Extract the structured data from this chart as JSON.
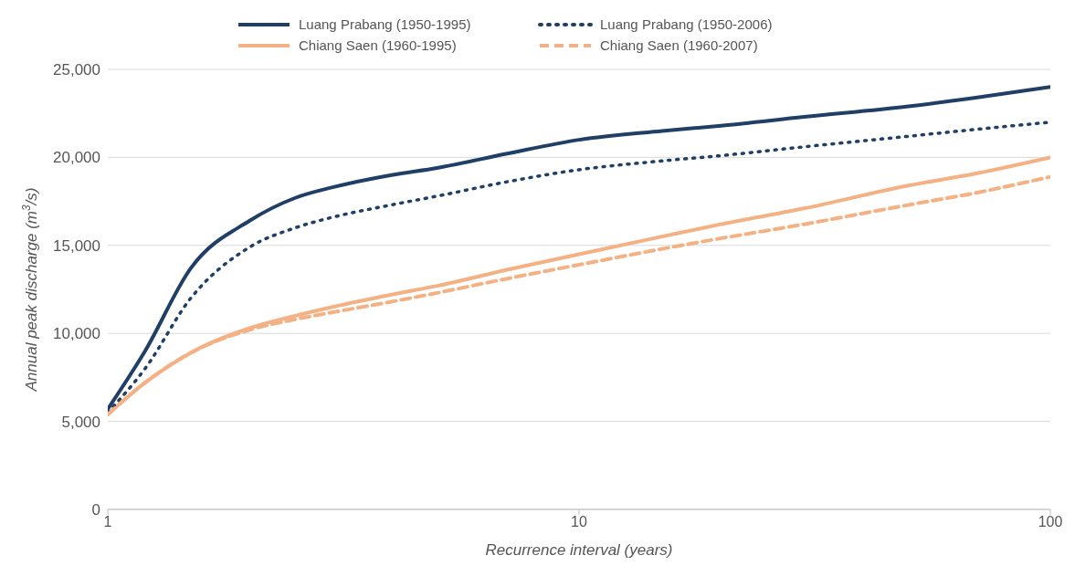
{
  "chart_data": {
    "type": "line",
    "xlabel": "Recurrence interval (years)",
    "ylabel": "Annual peak discharge (m$^{3}$/s)",
    "x": [
      1,
      1.2,
      1.5,
      2,
      2.5,
      3,
      4,
      5,
      7,
      10,
      15,
      20,
      30,
      50,
      70,
      100
    ],
    "series": [
      {
        "name": "Luang Prabang (1950-1995)",
        "color": "#203f66",
        "line_style": "solid",
        "values": [
          5700,
          9000,
          13700,
          16400,
          17700,
          18300,
          19000,
          19400,
          20200,
          21000,
          21500,
          21800,
          22300,
          22900,
          23400,
          24000
        ]
      },
      {
        "name": "Chiang Saen (1960-1995)",
        "color": "#f4b183",
        "line_style": "solid",
        "values": [
          5400,
          7200,
          8900,
          10300,
          11000,
          11500,
          12200,
          12700,
          13600,
          14500,
          15500,
          16200,
          17100,
          18400,
          19100,
          20000
        ]
      },
      {
        "name": "Luang Prabang (1950-2006)",
        "color": "#203f66",
        "line_style": "dotted",
        "values": [
          5500,
          8000,
          12000,
          14900,
          16000,
          16600,
          17300,
          17800,
          18600,
          19300,
          19800,
          20100,
          20600,
          21200,
          21600,
          22000
        ]
      },
      {
        "name": "Chiang Saen (1960-2007)",
        "color": "#f4b183",
        "line_style": "dashed",
        "values": [
          5400,
          7200,
          8900,
          10200,
          10800,
          11200,
          11800,
          12300,
          13100,
          13900,
          14800,
          15400,
          16200,
          17300,
          18000,
          18900
        ]
      }
    ],
    "log": "x",
    "xlim": [
      1,
      100
    ],
    "xticks": [
      1,
      10,
      100
    ],
    "ylim": [
      0,
      25000
    ],
    "yticks": [
      0,
      {
        "value": 5000,
        "label": "5,000"
      },
      {
        "value": 10000,
        "label": "10,000"
      },
      {
        "value": 15000,
        "label": "15,000"
      },
      {
        "value": 20000,
        "label": "20,000"
      },
      {
        "value": 25000,
        "label": "25,000"
      }
    ],
    "grid": "y",
    "legend": "top",
    "marker": "none"
  }
}
